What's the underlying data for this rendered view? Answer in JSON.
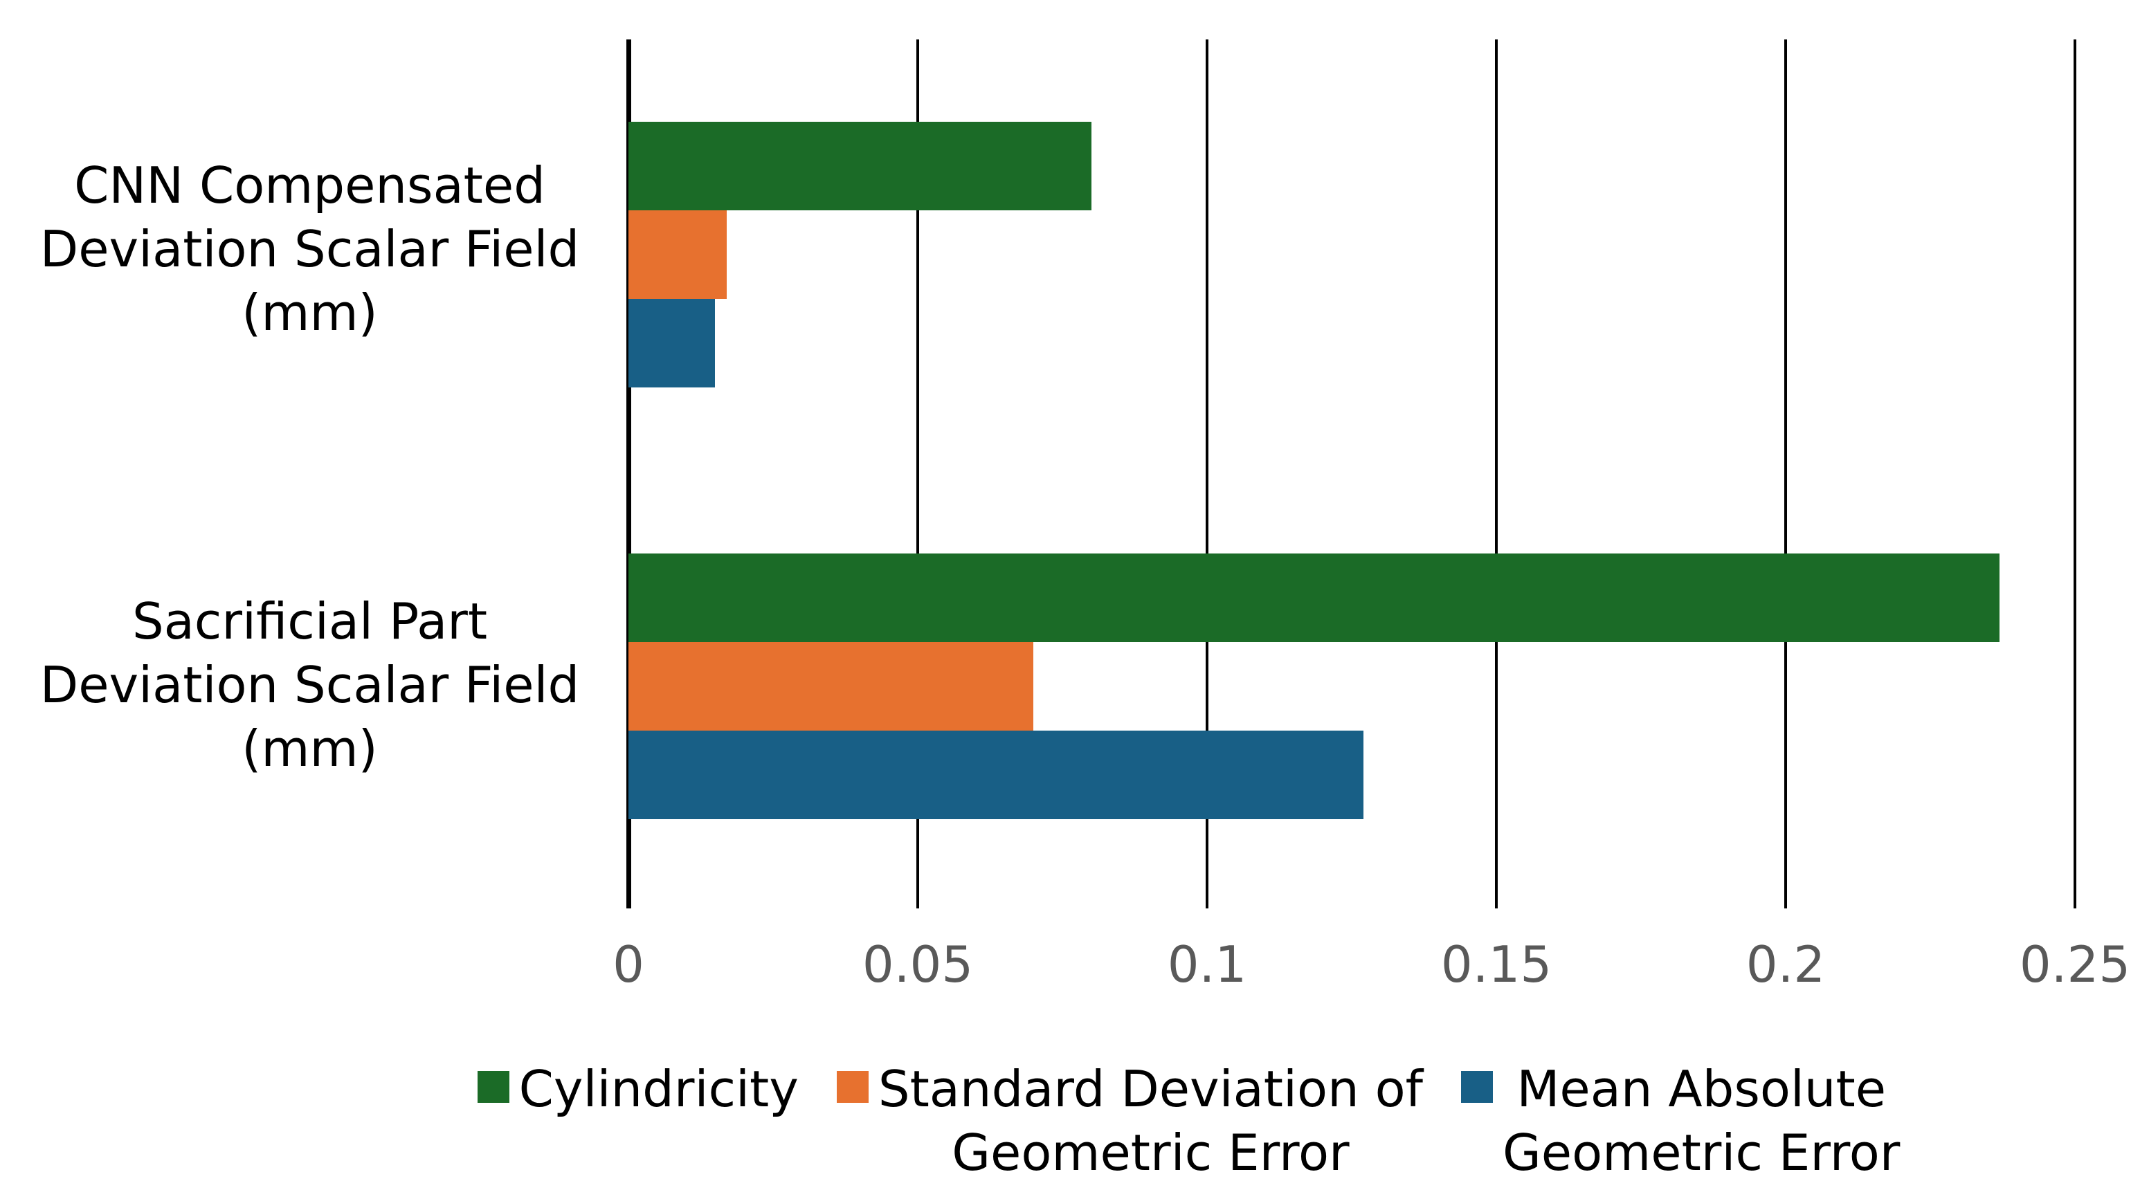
{
  "chart_data": {
    "type": "bar",
    "orientation": "horizontal",
    "title": "",
    "xlabel": "",
    "ylabel": "",
    "xlim": [
      0,
      0.25
    ],
    "grid": "vertical-black-lines",
    "legend_position": "bottom-center",
    "x_ticks": [
      "0",
      "0.05",
      "0.1",
      "0.15",
      "0.2",
      "0.25"
    ],
    "tick_values": [
      0,
      0.05,
      0.1,
      0.15,
      0.2,
      0.25
    ],
    "categories": [
      "CNN Compensated Deviation Scalar Field (mm)",
      "Sacrificial Part Deviation Scalar Field (mm)"
    ],
    "category_label_lines": [
      [
        "CNN Compensated",
        "Deviation Scalar Field",
        "(mm)"
      ],
      [
        "Sacrificial Part",
        "Deviation Scalar Field",
        "(mm)"
      ]
    ],
    "series": [
      {
        "name": "Cylindricity",
        "legend_lines": [
          "Cylindricity"
        ],
        "color": "#1B6B27",
        "values": [
          0.08,
          0.237
        ]
      },
      {
        "name": "Standard Deviation of Geometric Error",
        "legend_lines": [
          "Standard Deviation of",
          "Geometric Error"
        ],
        "color": "#E7712F",
        "values": [
          0.017,
          0.07
        ]
      },
      {
        "name": "Mean Absolute Geometric Error",
        "legend_lines": [
          "Mean Absolute",
          "Geometric Error"
        ],
        "color": "#185F86",
        "values": [
          0.015,
          0.127
        ]
      }
    ],
    "colors": {
      "gridline": "#000000",
      "axis_line": "#000000",
      "tick_label": "#595959",
      "category_label": "#000000",
      "legend_label": "#000000",
      "background": "#ffffff"
    }
  }
}
